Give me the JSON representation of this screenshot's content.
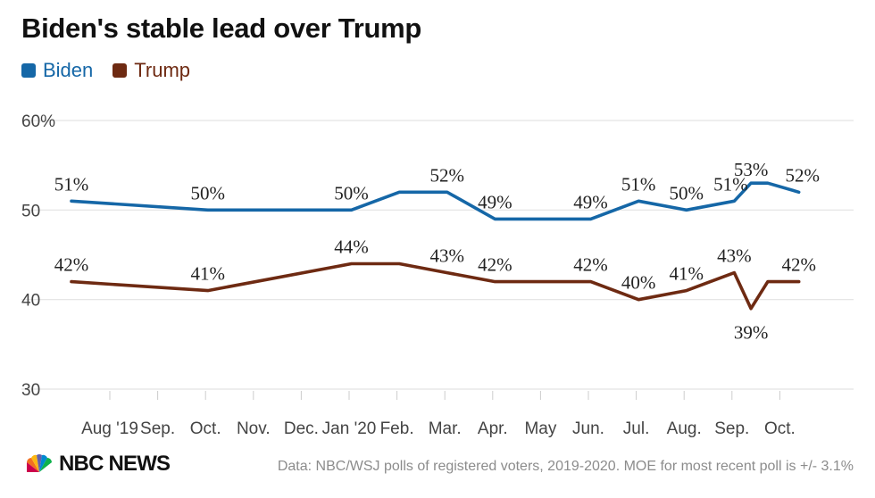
{
  "chart_data": {
    "type": "line",
    "title": "Biden's stable lead over Trump",
    "x": [
      "2019-07",
      "2019-10",
      "2020-01",
      "2020-02",
      "2020-03",
      "2020-04",
      "2020-06",
      "2020-07",
      "2020-08",
      "2020-09",
      "2020-10a",
      "2020-10b",
      "2020-10c"
    ],
    "x_label_positions_note": "",
    "series": [
      {
        "name": "Biden",
        "color": "#1567a7",
        "points": [
          {
            "t": 0.0,
            "v": 51,
            "label": "51%"
          },
          {
            "t": 2.85,
            "v": 50,
            "label": "50%"
          },
          {
            "t": 5.85,
            "v": 50,
            "label": "50%"
          },
          {
            "t": 6.85,
            "v": 52
          },
          {
            "t": 7.85,
            "v": 52,
            "label": "52%"
          },
          {
            "t": 8.85,
            "v": 49,
            "label": "49%"
          },
          {
            "t": 10.85,
            "v": 49,
            "label": "49%"
          },
          {
            "t": 11.85,
            "v": 51,
            "label": "51%"
          },
          {
            "t": 12.85,
            "v": 50,
            "label": "50%"
          },
          {
            "t": 13.85,
            "v": 51,
            "label": "51%"
          },
          {
            "t": 14.2,
            "v": 53,
            "label": "53%"
          },
          {
            "t": 14.55,
            "v": 53
          },
          {
            "t": 15.2,
            "v": 52,
            "label": "52%"
          }
        ]
      },
      {
        "name": "Trump",
        "color": "#6e2a12",
        "points": [
          {
            "t": 0.0,
            "v": 42,
            "label": "42%"
          },
          {
            "t": 2.85,
            "v": 41,
            "label": "41%"
          },
          {
            "t": 5.85,
            "v": 44,
            "label": "44%"
          },
          {
            "t": 6.85,
            "v": 44
          },
          {
            "t": 7.85,
            "v": 43,
            "label": "43%"
          },
          {
            "t": 8.85,
            "v": 42,
            "label": "42%"
          },
          {
            "t": 10.85,
            "v": 42,
            "label": "42%"
          },
          {
            "t": 11.85,
            "v": 40,
            "label": "40%"
          },
          {
            "t": 12.85,
            "v": 41,
            "label": "41%"
          },
          {
            "t": 13.85,
            "v": 43,
            "label": "43%"
          },
          {
            "t": 14.2,
            "v": 39,
            "label": "39%"
          },
          {
            "t": 14.55,
            "v": 42
          },
          {
            "t": 15.2,
            "v": 42,
            "label": "42%"
          }
        ]
      }
    ],
    "x_ticks": [
      "Aug '19",
      "Sep.",
      "Oct.",
      "Nov.",
      "Dec.",
      "Jan '20",
      "Feb.",
      "Mar.",
      "Apr.",
      "May",
      "Jun.",
      "Jul.",
      "Aug.",
      "Sep.",
      "Oct."
    ],
    "y_ticks": [
      "60%",
      "50",
      "40",
      "30"
    ],
    "y_tick_values": [
      60,
      50,
      40,
      30
    ],
    "ylim": [
      30,
      60
    ],
    "grid": "horizontal",
    "legend_placement": "top-left"
  },
  "legend": {
    "biden": "Biden",
    "trump": "Trump"
  },
  "footer": {
    "logo": "NBC NEWS",
    "source": "Data: NBC/WSJ polls of registered voters, 2019-2020. MOE for most recent poll is +/- 3.1%"
  },
  "colors": {
    "biden": "#1567a7",
    "trump": "#6e2a12",
    "grid": "#e3e3e3"
  }
}
